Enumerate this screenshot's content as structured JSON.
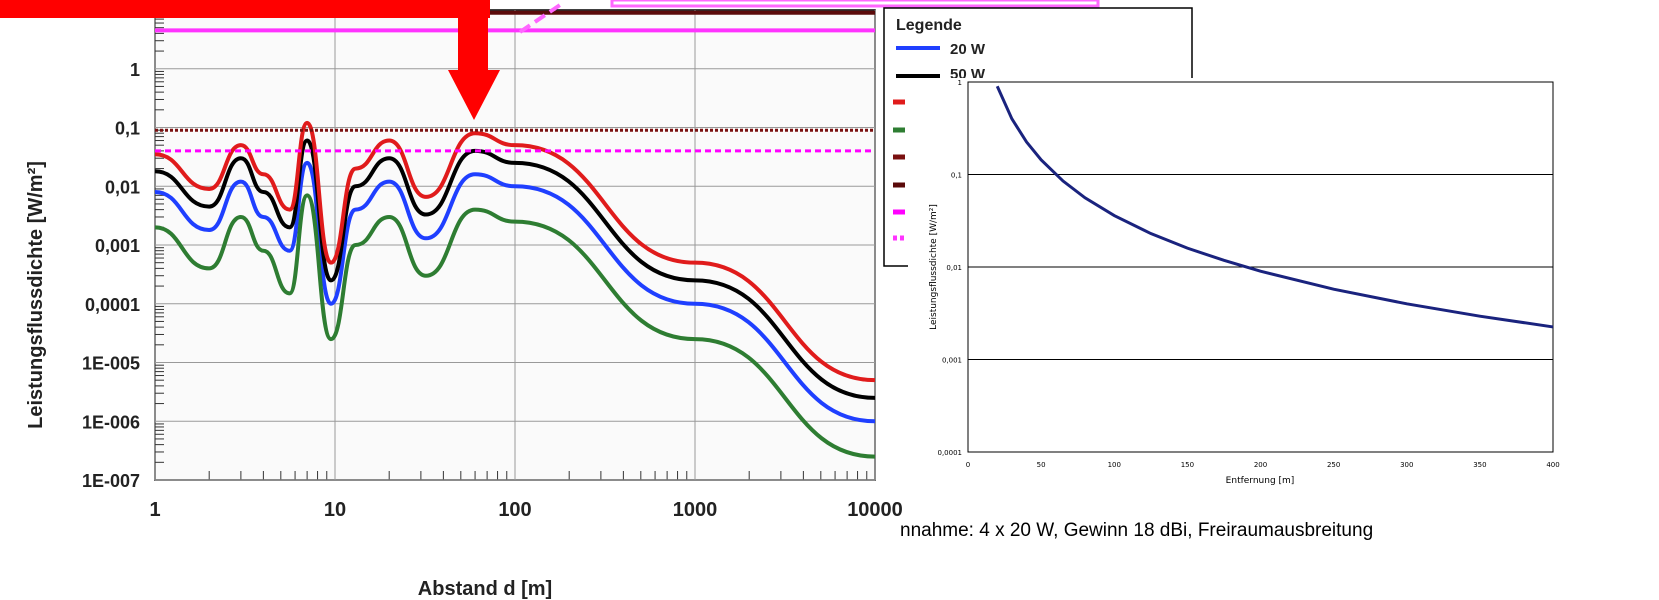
{
  "chart_data": [
    {
      "type": "line",
      "scale": "log-log",
      "xlabel": "Abstand d  [m]",
      "ylabel": "Leistungsflussdichte  [W/m²]",
      "xlim": [
        1,
        10000
      ],
      "ylim": [
        1e-07,
        10
      ],
      "x_ticks": [
        "1",
        "10",
        "100",
        "1000",
        "10000"
      ],
      "y_ticks": [
        "1E-007",
        "1E-006",
        "1E-005",
        "0,0001",
        "0,001",
        "0,01",
        "0,1",
        "1"
      ],
      "grid": true,
      "legend": {
        "title": "Legende",
        "placement": "right",
        "entries": [
          "20 W",
          "50 W"
        ]
      },
      "series": [
        {
          "name": "20 W",
          "color": "#1f3fff",
          "x": [
            1,
            2,
            3,
            4,
            5.6,
            7,
            9.5,
            13,
            20,
            32,
            60,
            100,
            1000,
            10000
          ],
          "y": [
            0.008,
            0.0018,
            0.012,
            0.003,
            0.0008,
            0.025,
            0.0001,
            0.004,
            0.012,
            0.0013,
            0.016,
            0.01,
            0.0001,
            1e-06
          ]
        },
        {
          "name": "50 W",
          "color": "#000000",
          "x": [
            1,
            2,
            3,
            4,
            5.6,
            7,
            9.5,
            13,
            20,
            32,
            60,
            100,
            1000,
            10000
          ],
          "y": [
            0.018,
            0.0045,
            0.03,
            0.008,
            0.002,
            0.06,
            0.00025,
            0.01,
            0.03,
            0.0033,
            0.04,
            0.025,
            0.00025,
            2.5e-06
          ]
        },
        {
          "name": "",
          "color": "#e01b1b",
          "x": [
            1,
            2,
            3,
            4,
            5.6,
            7,
            9.5,
            13,
            20,
            32,
            60,
            100,
            1000,
            10000
          ],
          "y": [
            0.035,
            0.009,
            0.05,
            0.016,
            0.004,
            0.12,
            0.0005,
            0.02,
            0.06,
            0.0066,
            0.08,
            0.05,
            0.0005,
            5e-06
          ]
        },
        {
          "name": "",
          "color": "#2e7d32",
          "x": [
            1,
            2,
            3,
            4,
            5.6,
            7,
            9.5,
            13,
            20,
            32,
            60,
            100,
            1000,
            10000
          ],
          "y": [
            0.002,
            0.0004,
            0.003,
            0.0008,
            0.00015,
            0.007,
            2.5e-05,
            0.001,
            0.003,
            0.0003,
            0.004,
            0.0025,
            2.5e-05,
            2.5e-07
          ]
        },
        {
          "name": "",
          "color": "#7a1010",
          "style": "dotted",
          "x": [
            1,
            10000
          ],
          "y": [
            0.09,
            0.09
          ]
        },
        {
          "name": "",
          "color": "#ff00ff",
          "style": "dashed",
          "x": [
            1,
            10000
          ],
          "y": [
            0.04,
            0.04
          ]
        },
        {
          "name": "",
          "color": "#5a0a0a",
          "style": "solid",
          "x": [
            1,
            10000
          ],
          "y": [
            9,
            9
          ]
        },
        {
          "name": "",
          "color": "#ff33ff",
          "style": "solid",
          "x": [
            1,
            10000
          ],
          "y": [
            4.5,
            4.5
          ]
        }
      ]
    },
    {
      "type": "line",
      "scale": "log-y",
      "xlabel": "Entfernung [m]",
      "ylabel": "Leistungsflussdichte [W/m²]",
      "xlim": [
        0,
        400
      ],
      "ylim": [
        0.0001,
        1
      ],
      "x_ticks": [
        "0",
        "50",
        "100",
        "150",
        "200",
        "250",
        "300",
        "350",
        "400"
      ],
      "y_ticks": [
        "0,0001",
        "0,001",
        "0,01",
        "0,1",
        "1"
      ],
      "grid": true,
      "series": [
        {
          "name": "",
          "color": "#1a237e",
          "x": [
            20,
            30,
            40,
            50,
            65,
            80,
            100,
            125,
            150,
            175,
            200,
            250,
            300,
            350,
            400
          ],
          "y": [
            0.9,
            0.4,
            0.225,
            0.144,
            0.085,
            0.056,
            0.036,
            0.023,
            0.016,
            0.0118,
            0.009,
            0.00576,
            0.004,
            0.00294,
            0.00225
          ]
        }
      ]
    }
  ],
  "caption": "nnahme: 4 x 20 W, Gewinn 18 dBi, Freiraumausbreitung",
  "colors": {
    "annotation_red": "#ff0000",
    "annotation_magenta": "#ff66ff"
  }
}
